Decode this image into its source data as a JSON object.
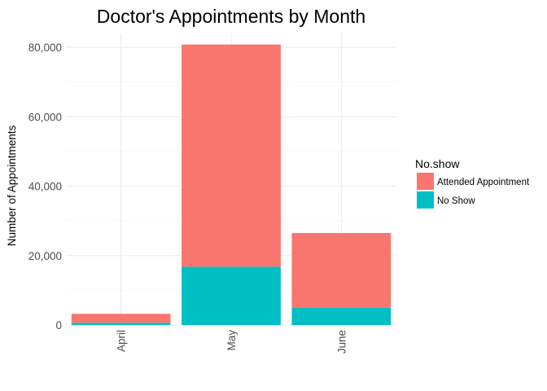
{
  "chart_data": {
    "type": "bar",
    "stacked": true,
    "title": "Doctor's Appointments by Month",
    "xlabel": "",
    "ylabel": "Number of Appointments",
    "categories": [
      "April",
      "May",
      "June"
    ],
    "series": [
      {
        "name": "No Show",
        "color": "#00BFC4",
        "values": [
          630,
          16800,
          5000
        ]
      },
      {
        "name": "Attended Appointment",
        "color": "#F8766D",
        "values": [
          2600,
          64000,
          21500
        ]
      }
    ],
    "ylim": [
      0,
      84000
    ],
    "yticks": [
      0,
      20000,
      40000,
      60000,
      80000
    ],
    "ytick_labels": [
      "0",
      "20,000",
      "40,000",
      "60,000",
      "80,000"
    ],
    "grid": true,
    "legend": {
      "title": "No.show",
      "position": "right",
      "entries": [
        {
          "label": "Attended Appointment",
          "color": "#F8766D"
        },
        {
          "label": "No Show",
          "color": "#00BFC4"
        }
      ]
    }
  }
}
